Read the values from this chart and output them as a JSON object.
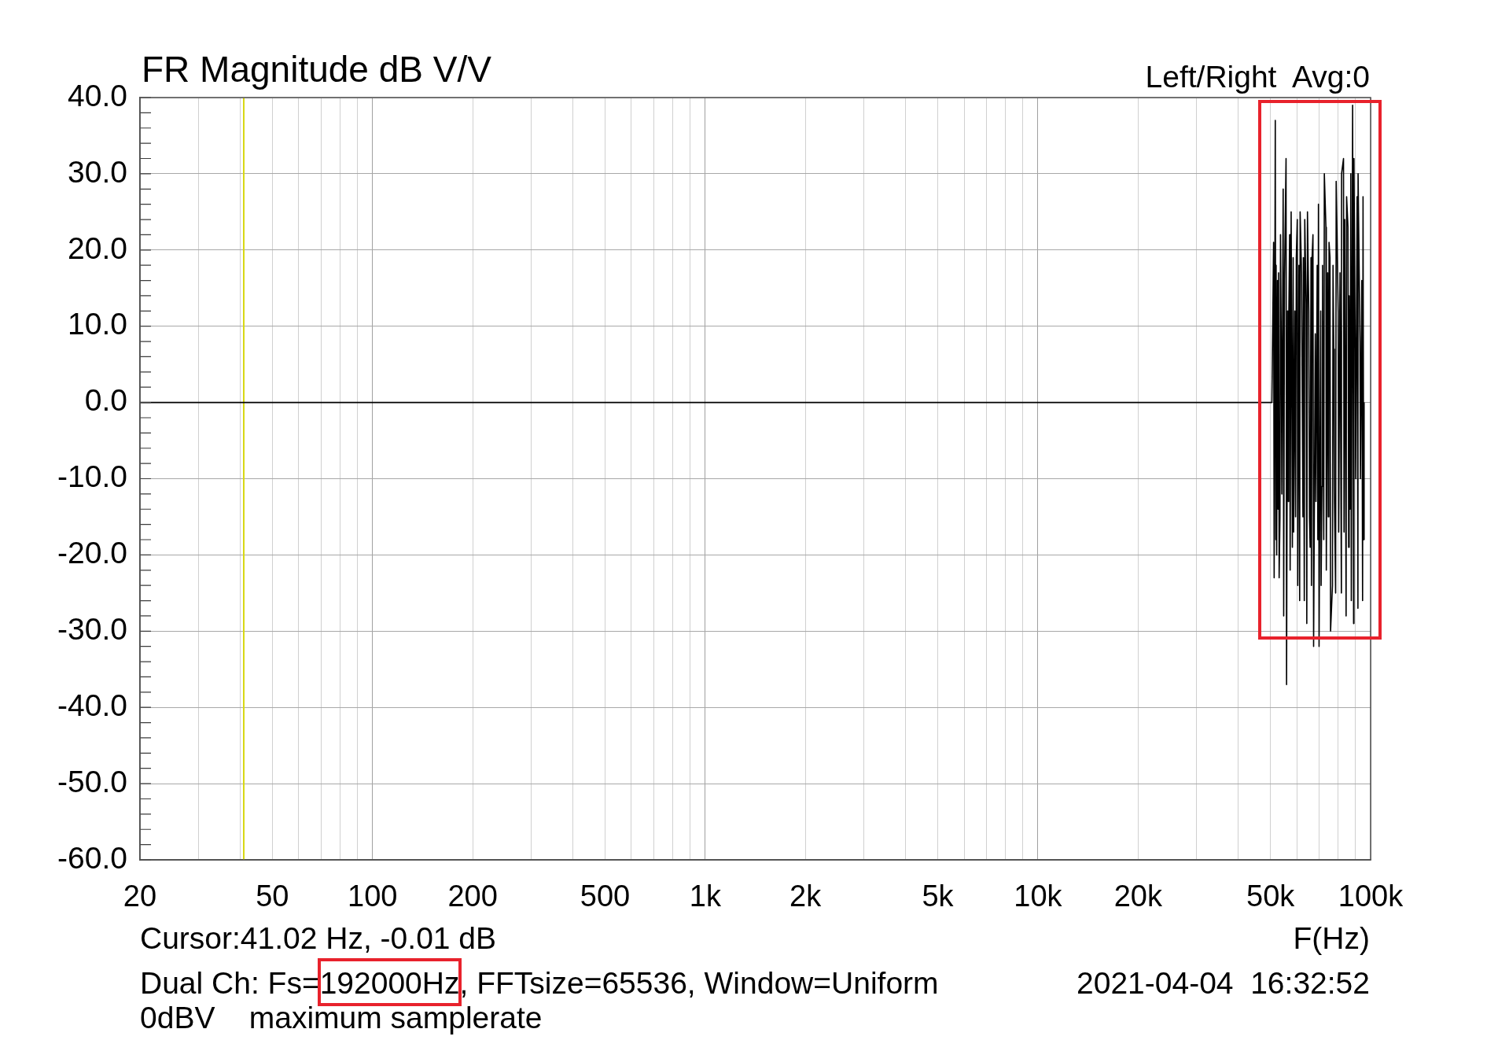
{
  "chart_data": {
    "type": "line",
    "title": "FR Magnitude dB V/V",
    "xlabel": "F(Hz)",
    "annotations": [
      "Left/Right  Avg:0",
      "Cursor:41.02 Hz, -0.01 dB",
      "Dual Ch: Fs=192000Hz, FFTsize=65536, Window=Uniform",
      "2021-04-04  16:32:52",
      "0dBV    maximum samplerate"
    ],
    "x": [
      20,
      44000,
      50500,
      51100,
      51300,
      51700,
      51900,
      52000,
      52200,
      52500,
      52700,
      52900,
      53100,
      53400,
      53600,
      53900,
      54100,
      54600,
      54800,
      55100,
      55700,
      55900,
      56300,
      56600,
      56700,
      57100,
      57300,
      57700,
      58200,
      58500,
      58700,
      59200,
      59500,
      59800,
      60200,
      60400,
      60900,
      61200,
      61400,
      62000,
      62600,
      62800,
      63200,
      63400,
      64000,
      64300,
      64600,
      65200,
      65500,
      65800,
      66200,
      66400,
      66700,
      67100,
      67400,
      68200,
      68500,
      69100,
      69400,
      69700,
      70000,
      70800,
      71000,
      71400,
      71700,
      72300,
      72600,
      73400,
      73600,
      74300,
      74600,
      74900,
      75000,
      75500,
      75800,
      76800,
      77100,
      77500,
      77800,
      78500,
      78800,
      79900,
      80200,
      80900,
      81700,
      81800,
      82900,
      83200,
      83600,
      84400,
      84700,
      85500,
      85900,
      86200,
      86700,
      87200,
      87500,
      88300,
      88900,
      89100,
      89900,
      90200,
      91100,
      91600,
      91700,
      92900,
      93200,
      94100,
      94600,
      94900,
      95300,
      95600
    ],
    "series": [
      {
        "color": "#000000",
        "values": [
          0,
          0,
          0,
          21,
          -23,
          37,
          -18,
          18,
          -20,
          16,
          -14,
          17,
          -23,
          -15,
          22,
          7,
          -12,
          28,
          -28,
          16,
          32,
          -37,
          12,
          -13,
          9,
          22,
          -22,
          25,
          -19,
          19,
          -17,
          12,
          -15,
          19,
          24,
          -24,
          18,
          -26,
          25,
          17,
          -15,
          19,
          -26,
          24,
          13,
          -29,
          25,
          12,
          -15,
          -19,
          19,
          -24,
          19,
          22,
          -32,
          9,
          -13,
          18,
          -18,
          26,
          -32,
          12,
          -24,
          -11,
          18,
          -18,
          30,
          23,
          -22,
          17,
          -15,
          -10,
          21,
          19,
          -30,
          -24,
          18,
          7,
          -11,
          -25,
          29,
          12,
          -17,
          17,
          -25,
          30,
          32,
          -17,
          24,
          -28,
          27,
          23,
          -19,
          14,
          -14,
          30,
          -26,
          39,
          -29,
          32,
          7,
          -10,
          27,
          -27,
          30,
          8,
          -10,
          16,
          -26,
          27,
          -18,
          0
        ]
      }
    ],
    "xlim": [
      20,
      100000
    ],
    "ylim": [
      -60,
      40
    ],
    "xticks": [
      20,
      {
        "value": 30,
        "label": null
      },
      {
        "value": 40,
        "label": null
      },
      50,
      {
        "value": 60,
        "label": null
      },
      {
        "value": 70,
        "label": null
      },
      {
        "value": 80,
        "label": null
      },
      {
        "value": 90,
        "label": null
      },
      100,
      200,
      {
        "value": 300,
        "label": null
      },
      {
        "value": 400,
        "label": null
      },
      500,
      {
        "value": 600,
        "label": null
      },
      {
        "value": 700,
        "label": null
      },
      {
        "value": 800,
        "label": null
      },
      {
        "value": 900,
        "label": null
      },
      {
        "value": 1000,
        "label": "1k"
      },
      {
        "value": 2000,
        "label": "2k"
      },
      {
        "value": 3000,
        "label": null
      },
      {
        "value": 4000,
        "label": null
      },
      {
        "value": 5000,
        "label": "5k"
      },
      {
        "value": 6000,
        "label": null
      },
      {
        "value": 7000,
        "label": null
      },
      {
        "value": 8000,
        "label": null
      },
      {
        "value": 9000,
        "label": null
      },
      {
        "value": 10000,
        "label": "10k"
      },
      {
        "value": 20000,
        "label": "20k"
      },
      {
        "value": 30000,
        "label": null
      },
      {
        "value": 40000,
        "label": null
      },
      {
        "value": 50000,
        "label": "50k"
      },
      {
        "value": 60000,
        "label": null
      },
      {
        "value": 70000,
        "label": null
      },
      {
        "value": 80000,
        "label": null
      },
      {
        "value": 90000,
        "label": null
      },
      {
        "value": 100000,
        "label": "100k"
      }
    ],
    "yticks": [
      {
        "value": -60,
        "label": "-60.0"
      },
      {
        "value": -58,
        "label": null
      },
      {
        "value": -56,
        "label": null
      },
      {
        "value": -54,
        "label": null
      },
      {
        "value": -52,
        "label": null
      },
      {
        "value": -50,
        "label": "-50.0"
      },
      {
        "value": -48,
        "label": null
      },
      {
        "value": -46,
        "label": null
      },
      {
        "value": -44,
        "label": null
      },
      {
        "value": -42,
        "label": null
      },
      {
        "value": -40,
        "label": "-40.0"
      },
      {
        "value": -38,
        "label": null
      },
      {
        "value": -36,
        "label": null
      },
      {
        "value": -34,
        "label": null
      },
      {
        "value": -32,
        "label": null
      },
      {
        "value": -30,
        "label": "-30.0"
      },
      {
        "value": -28,
        "label": null
      },
      {
        "value": -26,
        "label": null
      },
      {
        "value": -24,
        "label": null
      },
      {
        "value": -22,
        "label": null
      },
      {
        "value": -20,
        "label": "-20.0"
      },
      {
        "value": -18,
        "label": null
      },
      {
        "value": -16,
        "label": null
      },
      {
        "value": -14,
        "label": null
      },
      {
        "value": -12,
        "label": null
      },
      {
        "value": -10,
        "label": "-10.0"
      },
      {
        "value": -8,
        "label": null
      },
      {
        "value": -6,
        "label": null
      },
      {
        "value": -4,
        "label": null
      },
      {
        "value": -2,
        "label": null
      },
      {
        "value": 0,
        "label": "0.0"
      },
      {
        "value": 2,
        "label": null
      },
      {
        "value": 4,
        "label": null
      },
      {
        "value": 6,
        "label": null
      },
      {
        "value": 8,
        "label": null
      },
      {
        "value": 10,
        "label": "10.0"
      },
      {
        "value": 12,
        "label": null
      },
      {
        "value": 14,
        "label": null
      },
      {
        "value": 16,
        "label": null
      },
      {
        "value": 18,
        "label": null
      },
      {
        "value": 20,
        "label": "20.0"
      },
      {
        "value": 22,
        "label": null
      },
      {
        "value": 24,
        "label": null
      },
      {
        "value": 26,
        "label": null
      },
      {
        "value": 28,
        "label": null
      },
      {
        "value": 30,
        "label": "30.0"
      },
      {
        "value": 32,
        "label": null
      },
      {
        "value": 34,
        "label": null
      },
      {
        "value": 36,
        "label": null
      },
      {
        "value": 38,
        "label": null
      },
      {
        "value": 40,
        "label": "40.0"
      }
    ],
    "ref_lines": [
      {
        "axis": "x",
        "value": 41.02,
        "color": "#d8d814"
      }
    ],
    "log": "x",
    "grid": true,
    "marker": "none"
  }
}
